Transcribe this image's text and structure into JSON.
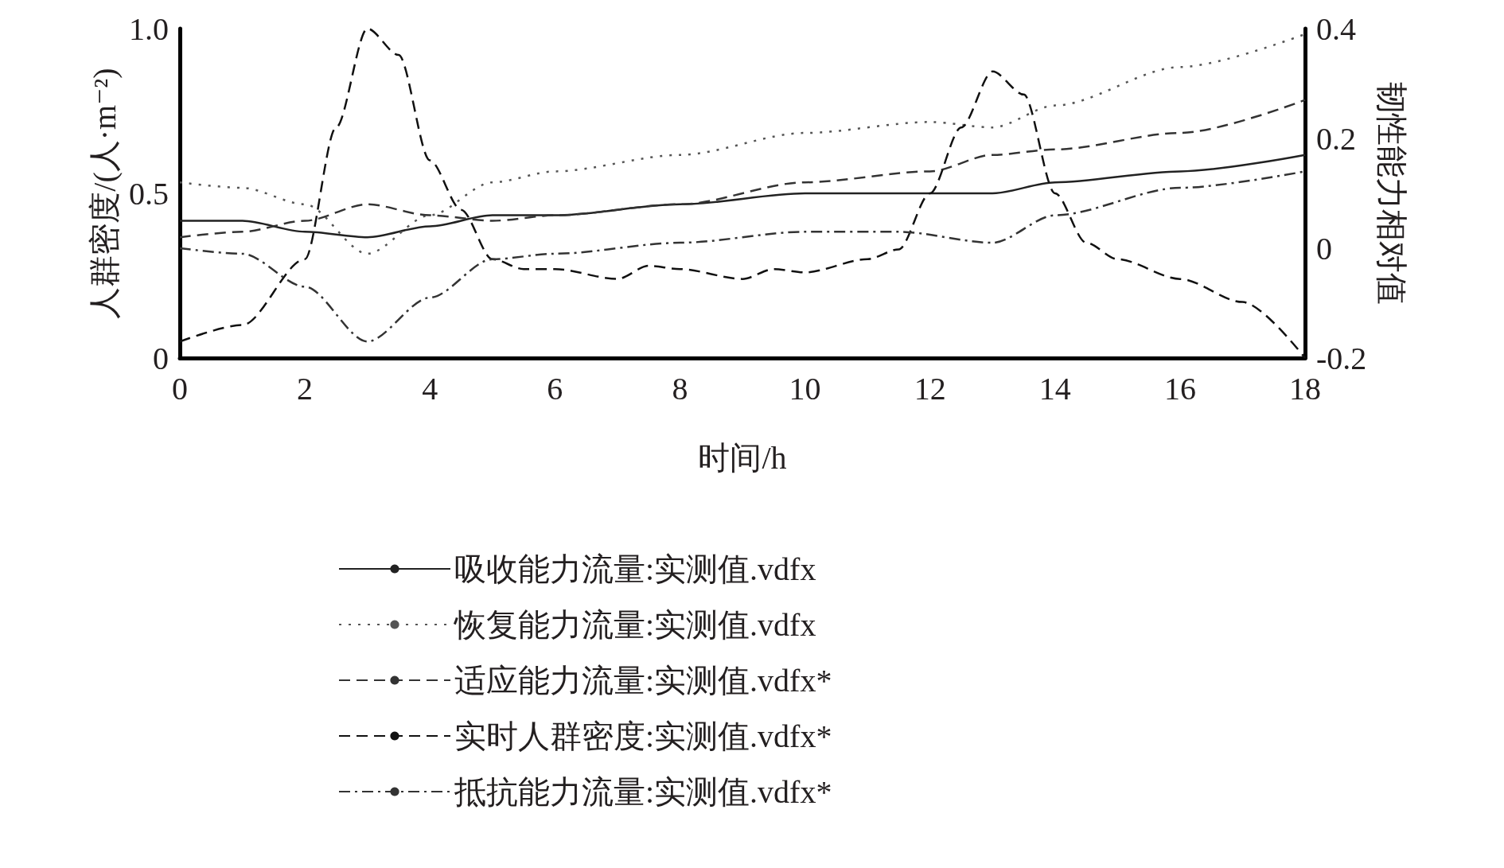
{
  "chart_data": {
    "type": "line",
    "xlabel": "时间/h",
    "ylabel": "人群密度/(人·m⁻²)",
    "y2label": "韧性能力相对值",
    "xlim": [
      0,
      18
    ],
    "xticks": [
      0,
      2,
      4,
      6,
      8,
      10,
      12,
      14,
      16,
      18
    ],
    "ylim": [
      0,
      1
    ],
    "yticks": [
      0,
      0.5,
      {
        "value": 1,
        "label": "1.0"
      }
    ],
    "y2lim": [
      -0.2,
      0.4
    ],
    "y2ticks": [
      -0.2,
      0,
      0.2,
      0.4
    ],
    "grid": false,
    "legend": "bottom",
    "marker": "none",
    "series": [
      {
        "name": "吸收能力流量:实测值.vdfx",
        "color": "#222222",
        "axis": "y2",
        "line_style": "solid",
        "x": [
          0,
          1,
          2,
          3,
          4,
          5,
          6,
          8,
          10,
          12,
          13,
          14,
          16,
          18
        ],
        "values": [
          0.05,
          0.05,
          0.03,
          0.02,
          0.04,
          0.06,
          0.06,
          0.08,
          0.1,
          0.1,
          0.1,
          0.12,
          0.14,
          0.17
        ]
      },
      {
        "name": "恢复能力流量:实测值.vdfx",
        "color": "#555555",
        "axis": "y2",
        "line_style": "dotted",
        "x": [
          0,
          1,
          2,
          3,
          4,
          5,
          6,
          8,
          10,
          12,
          13,
          14,
          16,
          18
        ],
        "values": [
          0.12,
          0.11,
          0.08,
          -0.01,
          0.06,
          0.12,
          0.14,
          0.17,
          0.21,
          0.23,
          0.22,
          0.26,
          0.33,
          0.39
        ]
      },
      {
        "name": "适应能力流量:实测值.vdfx*",
        "color": "#333333",
        "axis": "y2",
        "line_style": "dashed",
        "x": [
          0,
          1,
          2,
          3,
          4,
          5,
          6,
          8,
          10,
          12,
          13,
          14,
          16,
          18
        ],
        "values": [
          0.02,
          0.03,
          0.05,
          0.08,
          0.06,
          0.05,
          0.06,
          0.08,
          0.12,
          0.14,
          0.17,
          0.18,
          0.21,
          0.27
        ]
      },
      {
        "name": "实时人群密度:实测值.vdfx*",
        "color": "#111111",
        "line_style": "dashed",
        "x": [
          0,
          1,
          2,
          2.5,
          3,
          3.5,
          4,
          4.5,
          5,
          5.5,
          6,
          7,
          7.5,
          8,
          9,
          9.5,
          10,
          11,
          11.5,
          12,
          12.5,
          13,
          13.5,
          14,
          14.5,
          15,
          16,
          17,
          18
        ],
        "values": [
          0.05,
          0.1,
          0.3,
          0.7,
          1.0,
          0.92,
          0.6,
          0.45,
          0.3,
          0.27,
          0.27,
          0.24,
          0.28,
          0.27,
          0.24,
          0.27,
          0.26,
          0.3,
          0.33,
          0.5,
          0.7,
          0.87,
          0.8,
          0.5,
          0.35,
          0.3,
          0.24,
          0.17,
          0.0
        ]
      },
      {
        "name": "抵抗能力流量:实测值.vdfx*",
        "color": "#333333",
        "axis": "y2",
        "line_style": "dashdot",
        "x": [
          0,
          1,
          2,
          3,
          4,
          5,
          6,
          8,
          10,
          11.5,
          13,
          14,
          16,
          18
        ],
        "values": [
          0,
          -0.01,
          -0.07,
          -0.17,
          -0.09,
          -0.02,
          -0.01,
          0.01,
          0.03,
          0.03,
          0.01,
          0.06,
          0.11,
          0.14
        ]
      }
    ]
  }
}
